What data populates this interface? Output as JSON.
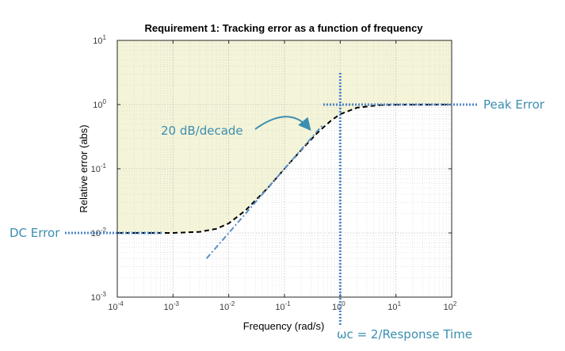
{
  "chart_data": {
    "type": "line",
    "title": "Requirement 1: Tracking error as a function of frequency",
    "xlabel": "Frequency (rad/s)",
    "ylabel": "Relative error (abs)",
    "xscale": "log",
    "yscale": "log",
    "xlim": [
      0.0001,
      100
    ],
    "ylim": [
      0.001,
      10
    ],
    "grid": true,
    "x_ticks": [
      {
        "base": "10",
        "exp": "-4"
      },
      {
        "base": "10",
        "exp": "-3"
      },
      {
        "base": "10",
        "exp": "-2"
      },
      {
        "base": "10",
        "exp": "-1"
      },
      {
        "base": "10",
        "exp": "0"
      },
      {
        "base": "10",
        "exp": "1"
      },
      {
        "base": "10",
        "exp": "2"
      }
    ],
    "y_ticks": [
      {
        "base": "10",
        "exp": "-3"
      },
      {
        "base": "10",
        "exp": "-2"
      },
      {
        "base": "10",
        "exp": "-1"
      },
      {
        "base": "10",
        "exp": "0"
      },
      {
        "base": "10",
        "exp": "1"
      }
    ],
    "shaded_region": {
      "description_color": "#f4f4d8",
      "above_curve": true
    },
    "series": [
      {
        "style": "dashed",
        "color": "#000000",
        "x": [
          0.0001,
          0.001,
          0.003,
          0.006,
          0.01,
          0.02,
          0.05,
          0.1,
          0.2,
          0.4,
          0.7,
          1,
          2,
          5,
          10,
          100
        ],
        "y": [
          0.01,
          0.01,
          0.0104,
          0.0116,
          0.0141,
          0.0224,
          0.05,
          0.1,
          0.196,
          0.371,
          0.573,
          0.707,
          0.894,
          0.981,
          0.995,
          1.0
        ]
      },
      {
        "style": "dashdot",
        "color": "#5b8fc9",
        "x": [
          0.004,
          0.5
        ],
        "y": [
          0.004,
          0.5
        ]
      }
    ],
    "annotations": {
      "dc_error": "DC Error",
      "peak_error": "Peak Error",
      "slope": "20 dB/decade",
      "crossover": "ωc = 2/Response Time",
      "annotation_color": "#3b8eb0",
      "guide_color": "#4f86c6"
    }
  }
}
